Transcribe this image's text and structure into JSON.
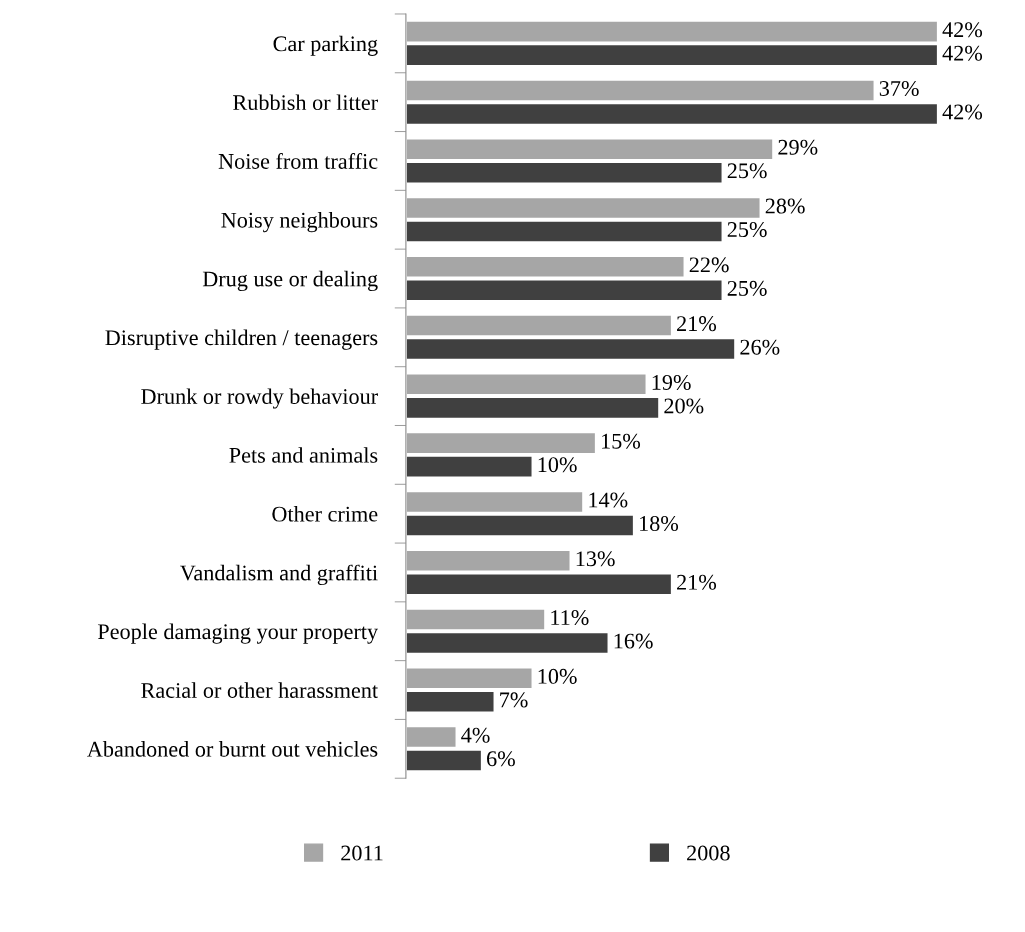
{
  "chart_data": {
    "type": "bar",
    "orientation": "horizontal",
    "categories": [
      "Car parking",
      "Rubbish or litter",
      "Noise from traffic",
      "Noisy neighbours",
      "Drug use or dealing",
      "Disruptive children / teenagers",
      "Drunk or rowdy behaviour",
      "Pets and animals",
      "Other crime",
      "Vandalism and graffiti",
      "People damaging your property",
      "Racial or other harassment",
      "Abandoned or burnt out vehicles"
    ],
    "series": [
      {
        "name": "2011",
        "color": "#a6a6a6",
        "values": [
          42,
          37,
          29,
          28,
          22,
          21,
          19,
          15,
          14,
          13,
          11,
          10,
          4
        ],
        "value_labels": [
          "42%",
          "37%",
          "29%",
          "28%",
          "22%",
          "21%",
          "19%",
          "15%",
          "14%",
          "13%",
          "11%",
          "10%",
          "4%"
        ]
      },
      {
        "name": "2008",
        "color": "#404040",
        "values": [
          42,
          42,
          25,
          25,
          25,
          26,
          20,
          10,
          18,
          21,
          16,
          7,
          6
        ],
        "value_labels": [
          "42%",
          "42%",
          "25%",
          "25%",
          "25%",
          "26%",
          "20%",
          "10%",
          "18%",
          "21%",
          "16%",
          "7%",
          "6%"
        ]
      }
    ],
    "legend": "bottom",
    "tick_labels": "y",
    "grid": false
  }
}
